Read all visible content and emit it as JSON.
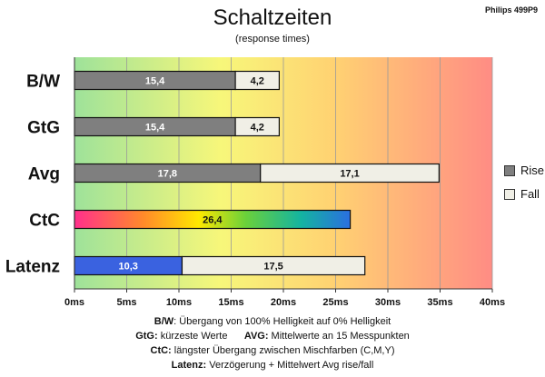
{
  "header": {
    "title": "Schaltzeiten",
    "subtitle": "(response times)",
    "model": "Philips 499P9"
  },
  "legend": {
    "rise": "Rise",
    "fall": "Fall"
  },
  "colors": {
    "rise": "#7f7f7f",
    "fall": "#f0efe6",
    "latenz_rise": "#3a62e0",
    "bg_gradient": [
      "#9ee29a",
      "#f7f77a",
      "#ffd272",
      "#ff8c84"
    ]
  },
  "notes": {
    "line1": {
      "key": "B/W",
      "text": ":  Übergang von 100% Helligkeit auf 0% Helligkeit"
    },
    "line2": {
      "key_a": "GtG:",
      "text_a": " kürzeste  Werte",
      "key_b": "AVG:",
      "text_b": " Mittelwerte  an 15 Messpunkten"
    },
    "line3": {
      "key": "CtC:",
      "text": " längster Übergang  zwischen Mischfarben (C,M,Y)"
    },
    "line4": {
      "key": "Latenz:",
      "text": " Verzögerung  + Mittelwert  Avg rise/fall"
    }
  },
  "chart_data": {
    "type": "bar",
    "orientation": "horizontal",
    "stacked": true,
    "categories": [
      "B/W",
      "GtG",
      "Avg",
      "CtC",
      "Latenz"
    ],
    "series": [
      {
        "name": "Rise",
        "values": [
          15.4,
          15.4,
          17.8,
          26.4,
          10.3
        ]
      },
      {
        "name": "Fall",
        "values": [
          4.2,
          4.2,
          17.1,
          null,
          17.5
        ]
      }
    ],
    "x_ticks": [
      "0ms",
      "5ms",
      "10ms",
      "15ms",
      "20ms",
      "25ms",
      "30ms",
      "35ms",
      "40ms"
    ],
    "xlim": [
      0,
      40
    ],
    "grid": true,
    "legend_position": "right",
    "special_bar": {
      "category": "CtC",
      "fill": "rainbow gradient"
    }
  }
}
